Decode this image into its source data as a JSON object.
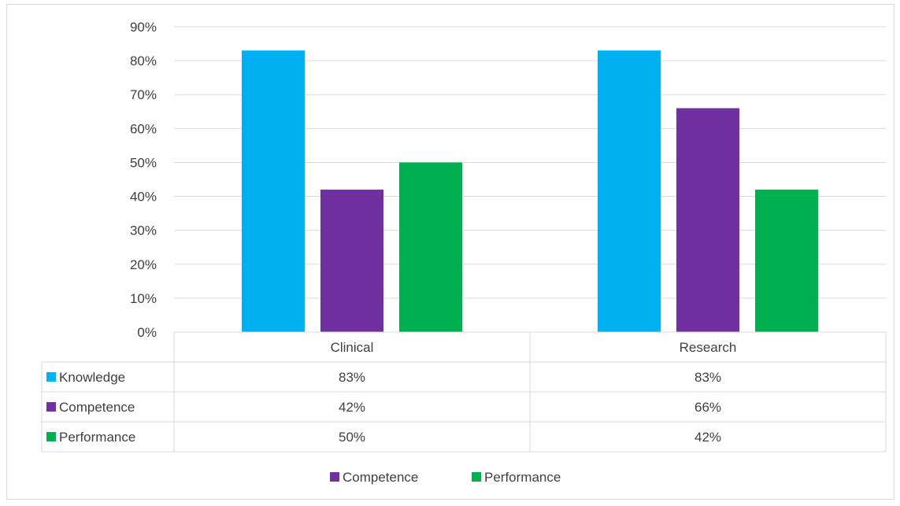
{
  "chart_data": {
    "type": "bar",
    "title": "",
    "xlabel": "",
    "ylabel": "",
    "categories": [
      "Clinical",
      "Research"
    ],
    "series": [
      {
        "name": "Knowledge",
        "values": [
          83,
          83
        ],
        "labels": [
          "83%",
          "83%"
        ],
        "color": "#00b0f0"
      },
      {
        "name": "Competence",
        "values": [
          42,
          66
        ],
        "labels": [
          "42%",
          "66%"
        ],
        "color": "#7030a0"
      },
      {
        "name": "Performance",
        "values": [
          50,
          42
        ],
        "labels": [
          "50%",
          "42%"
        ],
        "color": "#00b050"
      }
    ],
    "ylim": [
      0,
      90
    ],
    "yticks": [
      "0%",
      "10%",
      "20%",
      "30%",
      "40%",
      "50%",
      "60%",
      "70%",
      "80%",
      "90%"
    ],
    "grid": true,
    "data_table": true,
    "legend": {
      "position": "bottom",
      "entries": [
        "Competence",
        "Performance"
      ]
    }
  }
}
